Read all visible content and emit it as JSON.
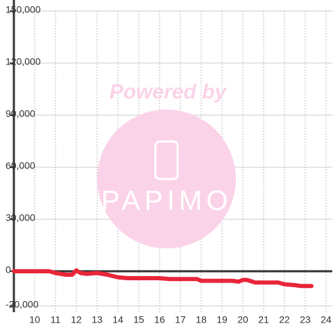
{
  "chart_data": {
    "type": "line",
    "watermark": "Powered by",
    "watermark_brand": "PAPIMO",
    "x": [
      9,
      10.7,
      11,
      11.5,
      11.8,
      12,
      12.2,
      12.5,
      13,
      13.5,
      14,
      14.5,
      15,
      16,
      16.5,
      17,
      17.8,
      18,
      19,
      19.5,
      19.8,
      20,
      20.2,
      20.6,
      21,
      21.7,
      22,
      22.5,
      22.8,
      23.3
    ],
    "series": [
      {
        "color": "#e8263a",
        "values": [
          0,
          0,
          -1000,
          -2000,
          -2000,
          500,
          -1000,
          -1500,
          -1000,
          -2000,
          -3500,
          -4000,
          -4000,
          -4000,
          -4500,
          -4500,
          -4500,
          -5500,
          -5500,
          -5500,
          -6000,
          -5000,
          -5000,
          -6500,
          -6500,
          -6500,
          -7500,
          -8000,
          -8500,
          -8500
        ]
      }
    ],
    "xlim": [
      9,
      24.3
    ],
    "ylim": [
      -20000,
      150000
    ],
    "xticks": [
      10,
      11,
      12,
      13,
      14,
      15,
      16,
      17,
      18,
      19,
      20,
      21,
      22,
      23,
      24
    ],
    "yticks": [
      {
        "value": -20000,
        "label": "-20,000"
      },
      0,
      {
        "value": 30000,
        "label": "30,000"
      },
      {
        "value": 60000,
        "label": "60,000"
      },
      {
        "value": 90000,
        "label": "90,000"
      },
      {
        "value": 120000,
        "label": "120,000"
      },
      {
        "value": 150000,
        "label": "150,000"
      }
    ],
    "grid": true
  }
}
